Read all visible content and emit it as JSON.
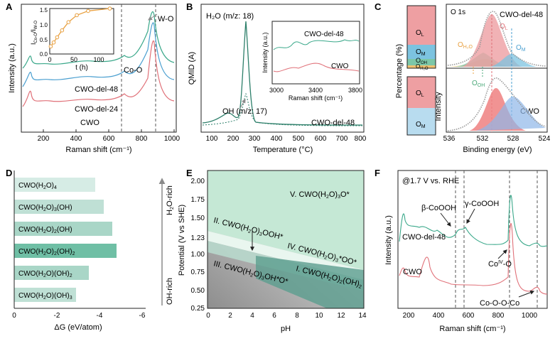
{
  "colors": {
    "teal": "#3aa88a",
    "blue": "#4a9fd0",
    "pink": "#e07078",
    "orange": "#e8a040",
    "green": "#6fbf88",
    "grey": "#8a8a8a",
    "shade": "#5b9e8e"
  },
  "chart_data": [
    {
      "panel": "A",
      "type": "line",
      "xlabel": "Raman shift (cm⁻¹)",
      "ylabel": "Intensity (a.u.)",
      "xlim": [
        50,
        1000
      ],
      "xticks": [
        "200",
        "400",
        "600",
        "800",
        "1000"
      ],
      "series": [
        {
          "name": "CWO-del-48"
        },
        {
          "name": "CWO-del-24"
        },
        {
          "name": "CWO"
        }
      ],
      "annotations": [
        "Co-O",
        "W-O"
      ],
      "inset": {
        "type": "line",
        "xlabel": "t (h)",
        "ylabel": "I Co-O/IW-O",
        "ylabel_main": "I",
        "ylabel_sub1": "Co-O",
        "ylabel_sep": "/I",
        "ylabel_sub2": "W-O",
        "xlim": [
          0,
          130
        ],
        "ylim": [
          0,
          1.5
        ],
        "xticks": [
          "0",
          "50",
          "100"
        ],
        "yticks": [
          "0.0",
          "0.5",
          "1.0",
          "1.5"
        ],
        "x": [
          2,
          8,
          15,
          25,
          38,
          55,
          78,
          122
        ],
        "y": [
          0.25,
          0.38,
          0.55,
          0.78,
          1.05,
          1.28,
          1.42,
          1.5
        ]
      }
    },
    {
      "panel": "B",
      "type": "line",
      "xlabel": "Temperature (°C)",
      "ylabel": "QMID (A)",
      "xlim": [
        50,
        800
      ],
      "xticks": [
        "100",
        "200",
        "300",
        "400",
        "500",
        "600",
        "700",
        "800"
      ],
      "series": [
        {
          "name": "H₂O (m/z: 18)"
        },
        {
          "name": "OH (m/z: 17)"
        }
      ],
      "sample": "CWO-del-48",
      "inset": {
        "xlabel": "Raman shift (cm⁻¹)",
        "ylabel": "Intensity (a.u.)",
        "xlim": [
          3000,
          3800
        ],
        "xticks": [
          "3000",
          "3400",
          "3800"
        ],
        "series": [
          {
            "name": "CWO-del-48"
          },
          {
            "name": "CWO"
          }
        ]
      }
    },
    {
      "panel": "C",
      "type": "bar",
      "ylabel": "Percentage (%)",
      "bars": [
        {
          "sample": "CWO-del-48",
          "segments": [
            {
              "label": "O",
              "sub": "L",
              "value": 55
            },
            {
              "label": "O",
              "sub": "M",
              "value": 25
            },
            {
              "label": "O",
              "sub": "OH",
              "value": 12
            },
            {
              "label": "O",
              "sub": "H₂O",
              "value": 5
            }
          ]
        },
        {
          "sample": "CWO",
          "segments": [
            {
              "label": "O",
              "sub": "L",
              "value": 52
            },
            {
              "label": "O",
              "sub": "M",
              "value": 45
            }
          ]
        }
      ]
    },
    {
      "panel": "C",
      "type": "line",
      "title": "O 1s",
      "xlabel": "Binding energy (eV)",
      "ylabel": "Intensity",
      "xlim": [
        536,
        524
      ],
      "xticks": [
        "536",
        "532",
        "528",
        "524"
      ],
      "series": [
        {
          "name": "CWO-del-48"
        },
        {
          "name": "CWO"
        }
      ],
      "peak_labels": [
        {
          "label": "O",
          "sub": "H₂O"
        },
        {
          "label": "O",
          "sub": "L"
        },
        {
          "label": "O",
          "sub": "M"
        },
        {
          "label": "O",
          "sub": "OH"
        }
      ]
    },
    {
      "panel": "D",
      "type": "bar",
      "orientation": "horizontal",
      "xlabel": "ΔG (eV/atom)",
      "xlim": [
        0,
        -6
      ],
      "xticks": [
        "0",
        "-2",
        "-4",
        "-6"
      ],
      "categories": [
        {
          "base": "CWO(H",
          "a": "2",
          "b": "O)",
          "c": "4",
          "d": ""
        },
        {
          "base": "CWO(H",
          "a": "2",
          "b": "O)",
          "c": "3",
          "d": "(OH)"
        },
        {
          "base": "CWO(H",
          "a": "2",
          "b": "O)",
          "c": "2",
          "d": "(OH)"
        },
        {
          "base": "CWO(H",
          "a": "2",
          "b": "O)",
          "c": "2",
          "d": "(OH)",
          "e": "2"
        },
        {
          "base": "CWO(H",
          "a": "2",
          "b": "O)(OH)",
          "c": "2",
          "d": ""
        },
        {
          "base": "CWO(H",
          "a": "2",
          "b": "O)(OH)",
          "c": "3",
          "d": ""
        }
      ],
      "values": [
        -3.8,
        -4.2,
        -4.6,
        -4.8,
        -3.5,
        -2.9
      ],
      "shades": [
        "#d6ece5",
        "#bfe0d5",
        "#a9d6c7",
        "#6fbfa5",
        "#a9d6c7",
        "#bfe0d5"
      ],
      "arrow_top": "H₂O-rich",
      "arrow_top_main": "H",
      "arrow_top_sub": "2",
      "arrow_top_rest": "O-rich",
      "arrow_bottom": "OH-rich"
    },
    {
      "panel": "E",
      "type": "area",
      "xlabel": "pH",
      "ylabel": "Potential (V vs SHE)",
      "xlim": [
        0,
        14
      ],
      "ylim": [
        0.25,
        2.1
      ],
      "xticks": [
        "0",
        "2",
        "4",
        "6",
        "8",
        "10",
        "12",
        "14"
      ],
      "yticks": [
        "0.25",
        "0.50",
        "0.75",
        "1.00",
        "1.23",
        "1.50",
        "1.75",
        "2.00"
      ],
      "regions": [
        {
          "roman": "V.",
          "p1": " CWO(H",
          "s1": "2",
          "p2": "O)",
          "s2": "3",
          "p3": "O*"
        },
        {
          "roman": "II.",
          "p1": " CWO(H",
          "s1": "2",
          "p2": "O)",
          "s2": "3",
          "p3": "OOH*"
        },
        {
          "roman": "IV.",
          "p1": " CWO(H",
          "s1": "2",
          "p2": "O)",
          "s2": "3",
          "p3": "*OO*"
        },
        {
          "roman": "I.",
          "p1": " CWO(H",
          "s1": "2",
          "p2": "O)",
          "s2": "2",
          "p3": "(OH)",
          "s3": "2"
        },
        {
          "roman": "III.",
          "p1": " CWO(H",
          "s1": "2",
          "p2": "O)",
          "s2": "3",
          "p3": "OH*O*"
        }
      ]
    },
    {
      "panel": "F",
      "type": "line",
      "title": "@1.7 V vs. RHE",
      "xlabel": "Raman shift (cm⁻¹)",
      "ylabel": "Intensity (a.u.)",
      "xlim": [
        100,
        1100
      ],
      "xticks": [
        "200",
        "400",
        "600",
        "800",
        "1000"
      ],
      "series": [
        {
          "name": "CWO-del-48"
        },
        {
          "name": "CWO"
        }
      ],
      "annotations": [
        "β-CoOOH",
        "γ-CoOOH",
        "Co",
        "IV",
        "-O",
        "Co-O-O-Co"
      ]
    }
  ]
}
